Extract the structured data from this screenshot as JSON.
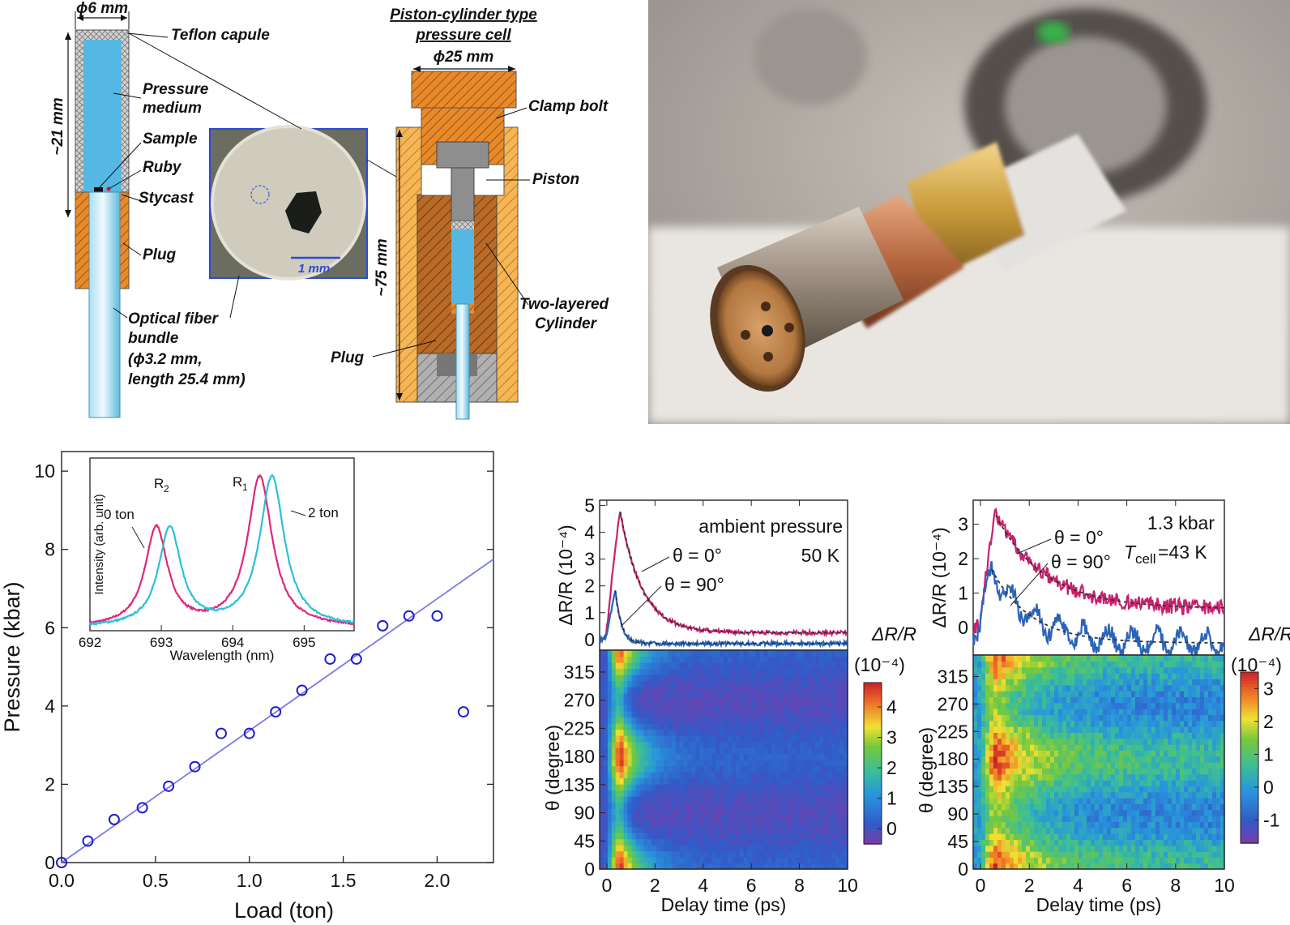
{
  "panel_a": {
    "capsule_labels": {
      "diameter": "ϕ6 mm",
      "teflon": "Teflon capule",
      "pressure_medium_1": "Pressure",
      "pressure_medium_2": "medium",
      "sample": "Sample",
      "ruby": "Ruby",
      "stycast": "Stycast",
      "plug": "Plug",
      "length": "~21 mm",
      "fiber_1": "Optical fiber",
      "fiber_2": "bundle",
      "fiber_3": "(ϕ3.2 mm,",
      "fiber_4": "length 25.4 mm)",
      "scale": "1 mm"
    },
    "cell_labels": {
      "title_1": "Piston-cylinder type",
      "title_2": "pressure cell",
      "diameter": "ϕ25 mm",
      "clamp_bolt": "Clamp bolt",
      "piston": "Piston",
      "length": "~75 mm",
      "cylinder_1": "Two-layered",
      "cylinder_2": "Cylinder",
      "plug": "Plug"
    },
    "colors": {
      "medium": "#55b8e3",
      "teflon": "#c9c9c9",
      "plug": "#e88a2a",
      "outer": "#f6b655",
      "inner": "#b86a26",
      "steel": "#8e8e8e"
    }
  },
  "panel_b": {
    "photo": "pressure-cell-photo"
  },
  "panel_c": {
    "chart_data": {
      "type": "scatter",
      "xlabel": "Load (ton)",
      "ylabel": "Pressure (kbar)",
      "xlim": [
        0,
        2.3
      ],
      "ylim": [
        0,
        10.5
      ],
      "xticks": [
        "0.0",
        "0.5",
        "1.0",
        "1.5",
        "2.0"
      ],
      "yticks": [
        "0",
        "2",
        "4",
        "6",
        "8",
        "10"
      ],
      "points": [
        [
          0,
          0
        ],
        [
          0.14,
          0.55
        ],
        [
          0.28,
          1.1
        ],
        [
          0.43,
          1.4
        ],
        [
          0.57,
          1.95
        ],
        [
          0.71,
          2.45
        ],
        [
          0.85,
          3.3
        ],
        [
          1.0,
          3.3
        ],
        [
          1.14,
          3.85
        ],
        [
          1.28,
          4.4
        ],
        [
          1.43,
          5.2
        ],
        [
          1.57,
          5.2
        ],
        [
          1.71,
          6.05
        ],
        [
          1.85,
          6.3
        ],
        [
          2.0,
          6.3
        ],
        [
          2.14,
          3.85
        ]
      ],
      "fit_line": [
        [
          0,
          0
        ],
        [
          2.3,
          7.75
        ]
      ],
      "colors": {
        "points": "#1f1fc8",
        "fit": "#7a7ae6"
      },
      "inset": {
        "xlabel": "Wavelength (nm)",
        "ylabel": "Intensity (arb. unit)",
        "xlim": [
          692,
          695.7
        ],
        "xticks": [
          "692",
          "693",
          "694",
          "695"
        ],
        "peak_labels": {
          "r2": "R",
          "r2_sub": "2",
          "r1": "R",
          "r1_sub": "1"
        },
        "series": [
          {
            "name": "0 ton",
            "color": "#e0267a",
            "peaks": [
              [
                692.93,
                0.66,
                0.19
              ],
              [
                694.38,
                1.0,
                0.21
              ]
            ],
            "baseline": 0.02
          },
          {
            "name": "2 ton",
            "color": "#2bbfdc",
            "peaks": [
              [
                693.12,
                0.66,
                0.19
              ],
              [
                694.55,
                1.0,
                0.21
              ]
            ],
            "baseline": 0.02
          }
        ]
      }
    }
  },
  "panel_d": {
    "chart_data": [
      {
        "type": "line",
        "annotation_1": "ambient pressure",
        "annotation_2": "50 K",
        "ylabel": "ΔR/R (10⁻⁴)",
        "ylim": [
          -0.4,
          5.2
        ],
        "yticks": [
          "0",
          "1",
          "2",
          "3",
          "4",
          "5"
        ],
        "series": [
          {
            "name": "θ = 0°",
            "color": "#c8206e",
            "peak": 4.8,
            "tpeak": 0.55,
            "tau": 0.9,
            "offset": 0.25
          },
          {
            "name": "θ = 90°",
            "color": "#2a64b8",
            "peak": 1.85,
            "tpeak": 0.35,
            "tau": 0.25,
            "offset": -0.15
          }
        ]
      },
      {
        "type": "heatmap",
        "xlabel": "Delay time (ps)",
        "ylabel": "θ (degree)",
        "xlim": [
          -0.3,
          10
        ],
        "ylim": [
          0,
          350
        ],
        "xticks": [
          "0",
          "2",
          "4",
          "6",
          "8",
          "10"
        ],
        "yticks": [
          "0",
          "45",
          "90",
          "135",
          "180",
          "225",
          "270",
          "315"
        ],
        "colorbar_label_1": "ΔR/R",
        "colorbar_label_2": "(10⁻⁴)",
        "colorbar_ticks": [
          "0",
          "1",
          "2",
          "3",
          "4"
        ],
        "vmin": -0.5,
        "vmax": 4.8
      }
    ]
  },
  "panel_e": {
    "chart_data": [
      {
        "type": "line",
        "annotation_1": "1.3 kbar",
        "annotation_2": "T",
        "annotation_2_sub": "cell",
        "annotation_2_rest": "=43 K",
        "ylabel": "ΔR/R (10⁻⁴)",
        "ylim": [
          -0.8,
          3.7
        ],
        "yticks": [
          "0",
          "1",
          "2",
          "3"
        ],
        "series": [
          {
            "name": "θ = 0°",
            "color": "#c8206e",
            "peak": 3.3,
            "tpeak": 0.6,
            "tau": 2.0,
            "offset": 0.55
          },
          {
            "name": "θ = 90°",
            "color": "#2a64b8",
            "peak": 1.7,
            "tpeak": 0.45,
            "tau": 1.6,
            "offset": -0.45
          }
        ]
      },
      {
        "type": "heatmap",
        "xlabel": "Delay time (ps)",
        "ylabel": "θ (degree)",
        "xlim": [
          -0.3,
          10
        ],
        "ylim": [
          0,
          350
        ],
        "xticks": [
          "0",
          "2",
          "4",
          "6",
          "8",
          "10"
        ],
        "yticks": [
          "0",
          "45",
          "90",
          "135",
          "180",
          "225",
          "270",
          "315"
        ],
        "colorbar_label_1": "ΔR/R",
        "colorbar_label_2": "(10⁻⁴)",
        "colorbar_ticks": [
          "-1",
          "0",
          "1",
          "2",
          "3"
        ],
        "vmin": -1.7,
        "vmax": 3.5
      }
    ]
  }
}
